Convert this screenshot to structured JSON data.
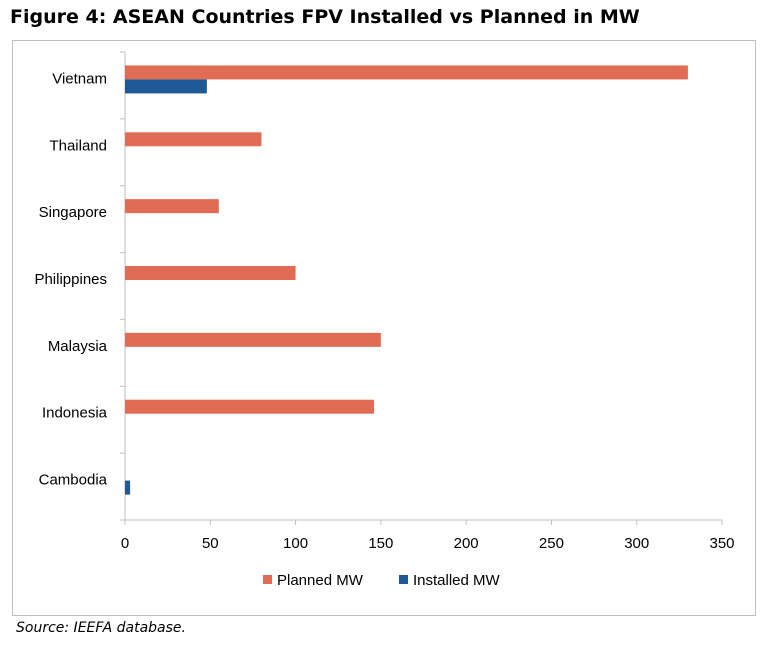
{
  "title": "Figure 4: ASEAN Countries FPV Installed vs Planned in MW",
  "source": "Source: IEEFA database.",
  "chart_data": {
    "type": "bar",
    "orientation": "horizontal",
    "categories": [
      "Vietnam",
      "Thailand",
      "Singapore",
      "Philippines",
      "Malaysia",
      "Indonesia",
      "Cambodia"
    ],
    "series": [
      {
        "name": "Planned MW",
        "color": "#e06c55",
        "values": [
          330,
          80,
          55,
          100,
          150,
          146,
          0
        ]
      },
      {
        "name": "Installed MW",
        "color": "#1f5a96",
        "values": [
          48,
          0,
          0,
          0,
          0,
          0,
          3
        ]
      }
    ],
    "xlim": [
      0,
      350
    ],
    "xticks": [
      "0",
      "50",
      "100",
      "150",
      "200",
      "250",
      "300",
      "350"
    ],
    "legend": "bottom",
    "grid": false
  }
}
